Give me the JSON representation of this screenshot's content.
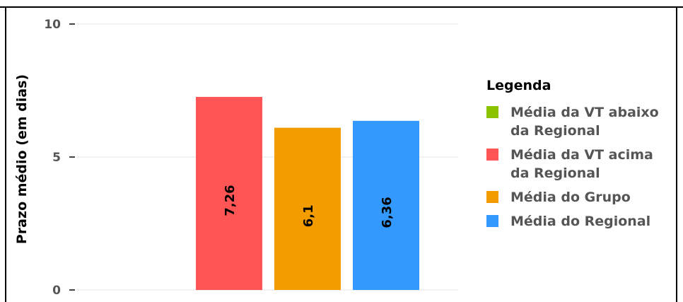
{
  "chart_data": {
    "type": "bar",
    "ylabel": "Prazo médio (em dias)",
    "ylim": [
      0,
      10
    ],
    "yticks": [
      "0",
      "5",
      "10"
    ],
    "grid": true,
    "legend_position": "right",
    "legend_title": "Legenda",
    "series": [
      {
        "name": "Média da VT abaixo da Regional",
        "color": "#8cc300",
        "value": null,
        "label": ""
      },
      {
        "name": "Média da VT acima da Regional",
        "color": "#ff5555",
        "value": 7.26,
        "label": "7,26"
      },
      {
        "name": "Média do Grupo",
        "color": "#f39c00",
        "value": 6.1,
        "label": "6,1"
      },
      {
        "name": "Média do Regional",
        "color": "#3399ff",
        "value": 6.36,
        "label": "6,36"
      }
    ]
  }
}
